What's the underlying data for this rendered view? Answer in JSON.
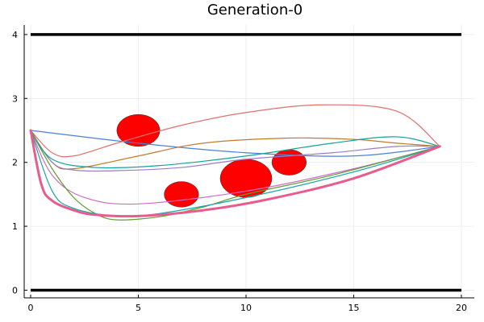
{
  "chart_data": {
    "type": "line",
    "title": "Generation-0",
    "xlabel": "",
    "ylabel": "",
    "xlim": [
      -0.3,
      20.6
    ],
    "ylim": [
      -0.12,
      4.15
    ],
    "grid": true,
    "legend": "none",
    "x_ticks": [
      0,
      5,
      10,
      15,
      20
    ],
    "y_ticks": [
      0,
      1,
      2,
      3,
      4
    ],
    "boundaries": [
      {
        "name": "",
        "y": 4,
        "x_range": [
          0,
          20
        ],
        "color": "#000000"
      },
      {
        "name": "",
        "y": 0,
        "x_range": [
          0,
          20
        ],
        "color": "#000000"
      }
    ],
    "obstacles": [
      {
        "center": [
          5,
          2.5
        ],
        "rx": 1.0,
        "ry": 0.25,
        "color": "#ff0000"
      },
      {
        "center": [
          7,
          1.5
        ],
        "rx": 0.8,
        "ry": 0.2,
        "color": "#ff0000"
      },
      {
        "center": [
          10,
          1.75
        ],
        "rx": 1.2,
        "ry": 0.3,
        "color": "#ff0000"
      },
      {
        "center": [
          12,
          2.0
        ],
        "rx": 0.8,
        "ry": 0.2,
        "color": "#ff0000"
      }
    ],
    "series": [
      {
        "color": "#4a80d9",
        "width": 1.2,
        "x": [
          0,
          5,
          10,
          15,
          19
        ],
        "y": [
          2.5,
          2.3,
          2.15,
          2.1,
          2.25
        ]
      },
      {
        "color": "#e26f6f",
        "width": 1.2,
        "x": [
          0,
          1,
          2,
          4,
          7,
          10,
          13.5,
          17,
          19
        ],
        "y": [
          2.5,
          2.15,
          2.1,
          2.3,
          2.58,
          2.78,
          2.9,
          2.8,
          2.25
        ]
      },
      {
        "color": "#c17b2a",
        "width": 1.2,
        "x": [
          0,
          1,
          2,
          5,
          8,
          12,
          15,
          17,
          19
        ],
        "y": [
          2.5,
          2.0,
          1.9,
          2.1,
          2.3,
          2.38,
          2.36,
          2.3,
          2.25
        ]
      },
      {
        "color": "#9b7cc9",
        "width": 1.2,
        "x": [
          0,
          1,
          2,
          4,
          7,
          10,
          14,
          17,
          19
        ],
        "y": [
          2.5,
          2.0,
          1.88,
          1.87,
          1.92,
          2.05,
          2.15,
          2.25,
          2.25
        ]
      },
      {
        "color": "#13a39a",
        "width": 1.2,
        "x": [
          0,
          1,
          3,
          6,
          10,
          14,
          17,
          19
        ],
        "y": [
          2.5,
          2.05,
          1.92,
          1.95,
          2.1,
          2.3,
          2.4,
          2.25
        ]
      },
      {
        "color": "#d16bc4",
        "width": 1.2,
        "x": [
          0,
          1,
          2.5,
          5,
          10,
          15,
          19
        ],
        "y": [
          2.5,
          1.8,
          1.45,
          1.35,
          1.55,
          1.9,
          2.25
        ]
      },
      {
        "color": "#5e9f2e",
        "width": 1.2,
        "x": [
          0,
          1,
          2,
          3,
          4,
          6,
          8,
          10,
          14,
          19
        ],
        "y": [
          2.5,
          1.9,
          1.45,
          1.2,
          1.1,
          1.15,
          1.3,
          1.5,
          1.8,
          2.25
        ]
      },
      {
        "color": "#15a3aa",
        "width": 1.2,
        "x": [
          0,
          1,
          2,
          4,
          6,
          10,
          15,
          19
        ],
        "y": [
          2.5,
          1.55,
          1.28,
          1.16,
          1.2,
          1.45,
          1.85,
          2.25
        ]
      },
      {
        "color": "#e85b8d",
        "width": 3,
        "x": [
          0,
          0.5,
          1,
          2,
          3,
          5,
          8,
          11,
          15,
          19
        ],
        "y": [
          2.5,
          1.65,
          1.4,
          1.25,
          1.18,
          1.16,
          1.25,
          1.42,
          1.75,
          2.25
        ]
      }
    ]
  }
}
